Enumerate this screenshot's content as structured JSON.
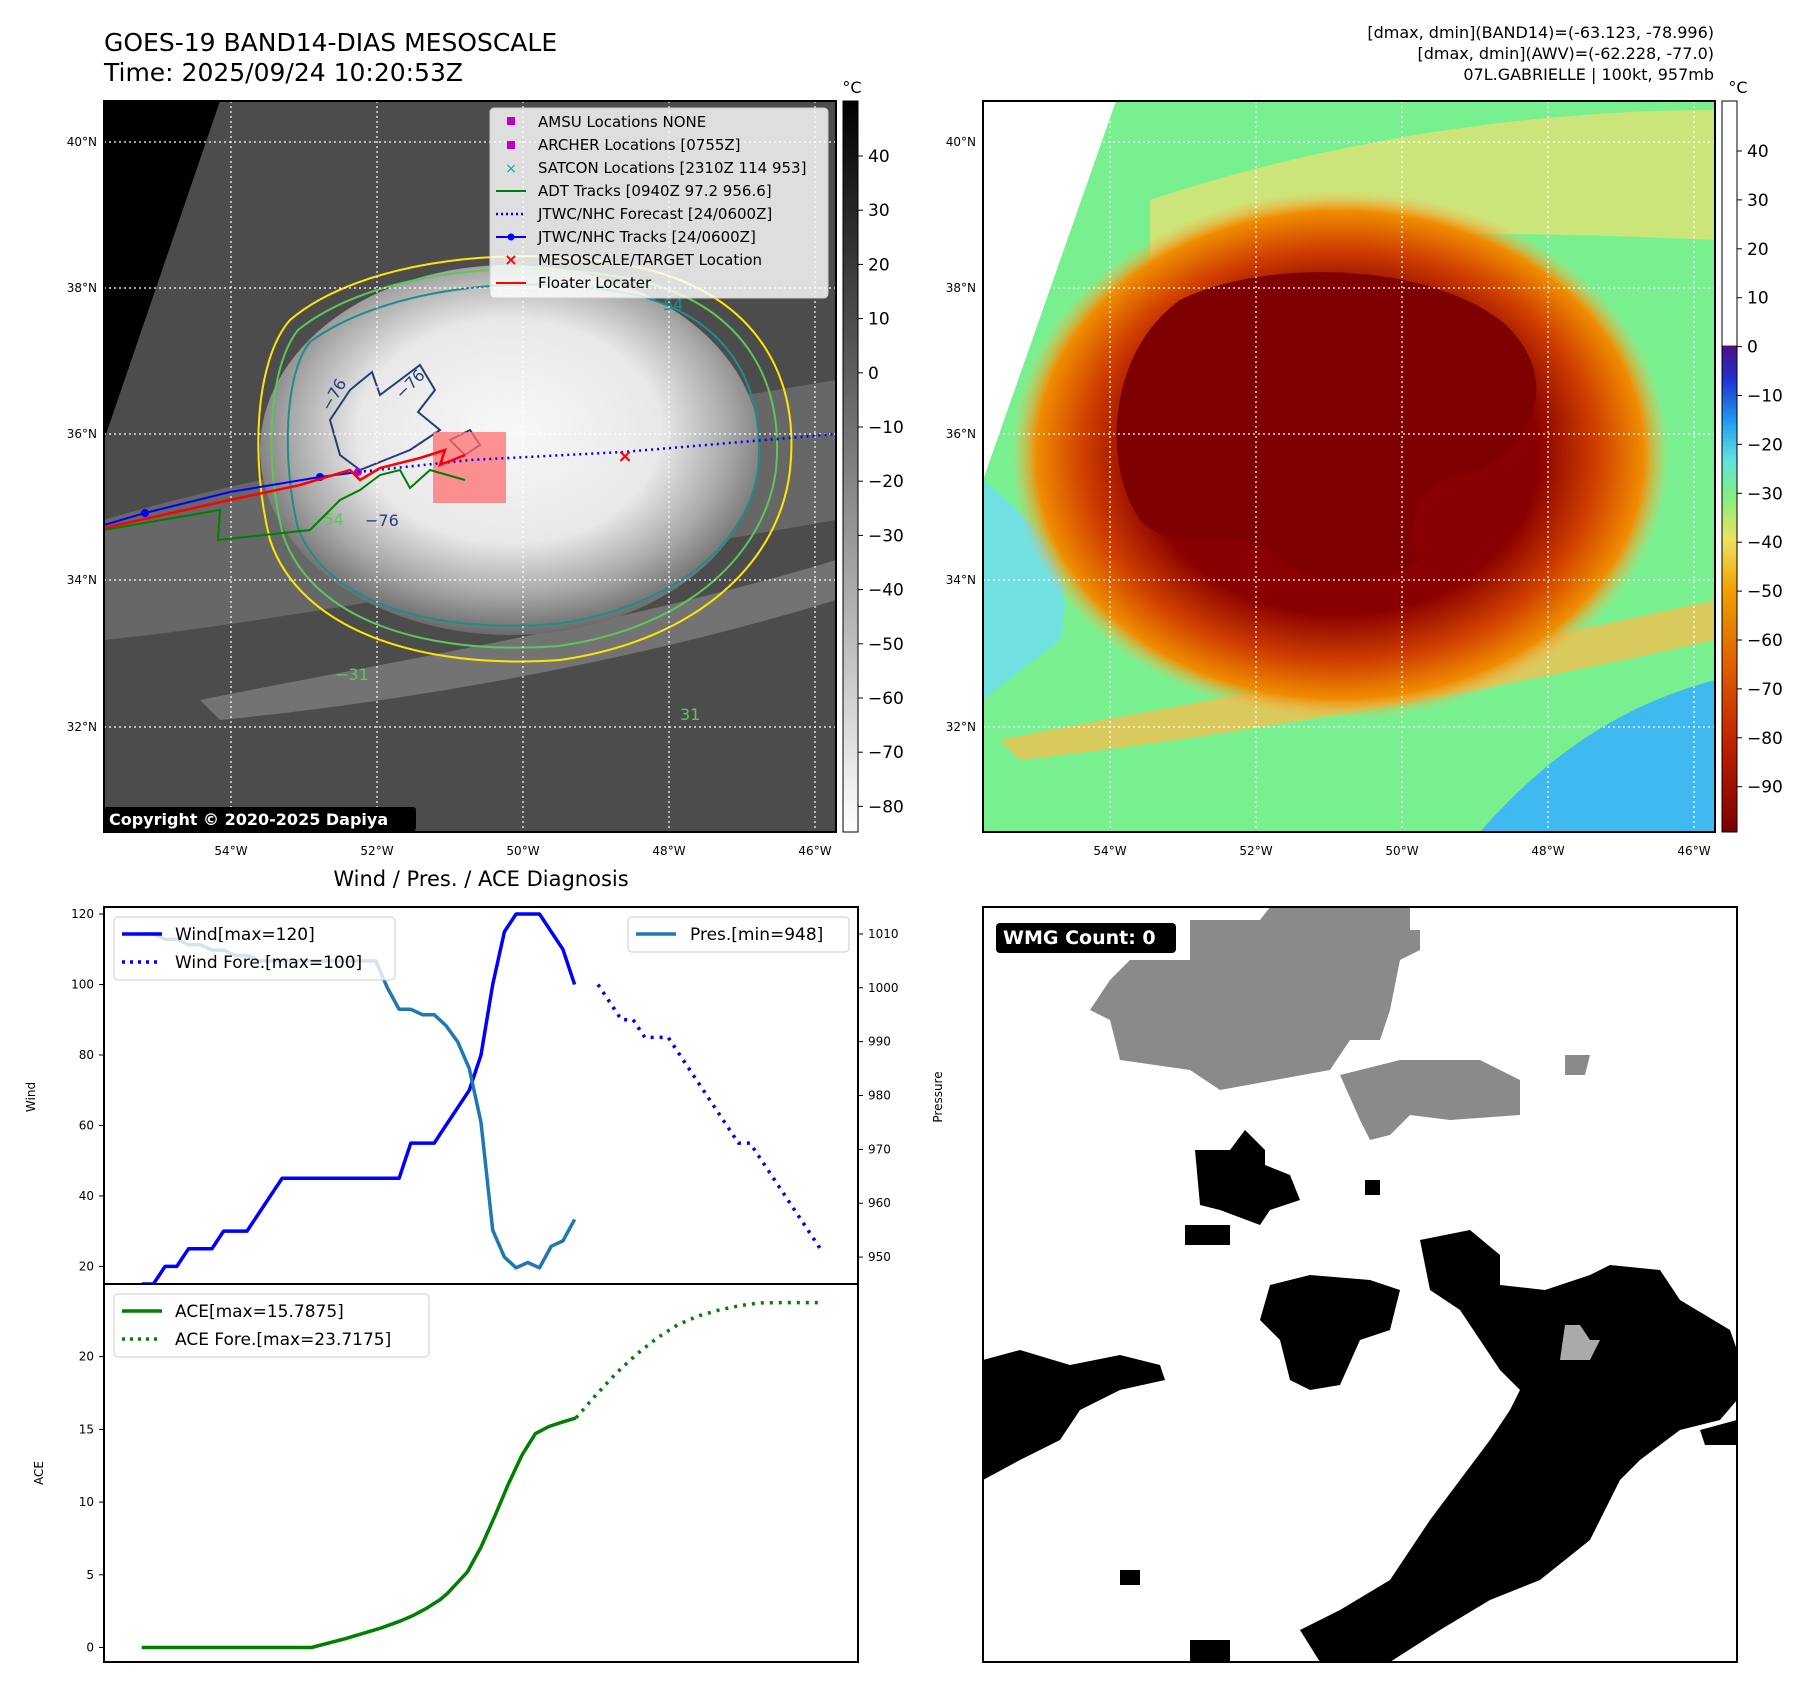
{
  "header": {
    "title_line1": "GOES-19 BAND14-DIAS MESOSCALE",
    "title_line2": "Time: 2025/09/24 10:20:53Z",
    "stats_line1": "[dmax, dmin](BAND14)=(-63.123, -78.996)",
    "stats_line2": "[dmax, dmin](AWV)=(-62.228, -77.0)",
    "stats_line3": "07L.GABRIELLE | 100kt, 957mb"
  },
  "ir_panel": {
    "lat_labels": [
      "40°N",
      "38°N",
      "36°N",
      "34°N",
      "32°N"
    ],
    "lon_labels": [
      "54°W",
      "52°W",
      "50°W",
      "48°W",
      "46°W"
    ],
    "colorbar_unit": "°C",
    "colorbar_ticks": [
      "40",
      "30",
      "20",
      "10",
      "0",
      "−10",
      "−20",
      "−30",
      "−40",
      "−50",
      "−60",
      "−70",
      "−80"
    ],
    "contour_labels": [
      "−76",
      "−76",
      "−76",
      "54",
      "−54",
      "−31",
      "31"
    ],
    "copyright": "Copyright © 2020-2025 Dapiya",
    "legend": [
      {
        "label": "AMSU Locations NONE",
        "color": "#c000c0",
        "marker": "square"
      },
      {
        "label": "ARCHER Locations [0755Z]",
        "color": "#c000c0",
        "marker": "square"
      },
      {
        "label": "SATCON Locations [2310Z 114 953]",
        "color": "#00b0b0",
        "marker": "x"
      },
      {
        "label": "ADT Tracks [0940Z 97.2 956.6]",
        "color": "#008000",
        "marker": "line"
      },
      {
        "label": "JTWC/NHC Forecast [24/0600Z]",
        "color": "#0000ff",
        "marker": "dotted"
      },
      {
        "label": "JTWC/NHC Tracks [24/0600Z]",
        "color": "#0000ff",
        "marker": "line-dot"
      },
      {
        "label": "MESOSCALE/TARGET Location",
        "color": "#ff0000",
        "marker": "x"
      },
      {
        "label": "Floater Locater",
        "color": "#ff0000",
        "marker": "line"
      }
    ]
  },
  "dias_panel": {
    "lat_labels": [
      "40°N",
      "38°N",
      "36°N",
      "34°N",
      "32°N"
    ],
    "lon_labels": [
      "54°W",
      "52°W",
      "50°W",
      "48°W",
      "46°W"
    ],
    "colorbar_unit": "°C",
    "colorbar_ticks": [
      "40",
      "30",
      "20",
      "10",
      "0",
      "−10",
      "−20",
      "−30",
      "−40",
      "−50",
      "−60",
      "−70",
      "−80",
      "−90"
    ]
  },
  "wmg_panel": {
    "label": "WMG Count: 0"
  },
  "chart_data": [
    {
      "type": "line",
      "title": "Wind / Pres. / ACE Diagnosis",
      "ylabel": "Wind",
      "y2label": "Pressure",
      "ylim": [
        15,
        122
      ],
      "y2lim": [
        945,
        1015
      ],
      "yticks": [
        20,
        40,
        60,
        80,
        100,
        120
      ],
      "y2ticks": [
        950,
        960,
        970,
        980,
        990,
        1000,
        1010
      ],
      "series": [
        {
          "name": "Wind[max=120]",
          "axis": "left",
          "style": "solid",
          "color": "#0000ff",
          "x": [
            0,
            1,
            2,
            3,
            4,
            5,
            6,
            7,
            8,
            9,
            10,
            11,
            12,
            13,
            14,
            15,
            16,
            17,
            18,
            19,
            20,
            21,
            22,
            23,
            24,
            25,
            26,
            27,
            28,
            29,
            30,
            31,
            32,
            33,
            34,
            35,
            36,
            37,
            38,
            39
          ],
          "y": [
            15,
            15,
            20,
            20,
            25,
            25,
            25,
            30,
            30,
            30,
            35,
            40,
            45,
            45,
            45,
            45,
            45,
            45,
            45,
            45,
            45,
            45,
            45,
            55,
            55,
            55,
            60,
            65,
            70,
            80,
            100,
            115,
            120,
            120,
            120,
            115,
            110,
            100,
            null,
            null
          ]
        },
        {
          "name": "Wind Fore.[max=100]",
          "axis": "left",
          "style": "dotted",
          "color": "#0000ff",
          "x": [
            39,
            40,
            41,
            42,
            43,
            44,
            45,
            46,
            47,
            48,
            49,
            50,
            51,
            52,
            53,
            54,
            55,
            56,
            57,
            58
          ],
          "y": [
            100,
            95,
            90,
            90,
            85,
            85,
            85,
            80,
            75,
            70,
            65,
            60,
            55,
            55,
            50,
            45,
            40,
            35,
            30,
            25
          ]
        },
        {
          "name": "Pres.[min=948]",
          "axis": "right",
          "style": "solid",
          "color": "#1f77b4",
          "x": [
            0,
            1,
            2,
            3,
            4,
            5,
            6,
            7,
            8,
            9,
            10,
            11,
            12,
            13,
            14,
            15,
            16,
            17,
            18,
            19,
            20,
            21,
            22,
            23,
            24,
            25,
            26,
            27,
            28,
            29,
            30,
            31,
            32,
            33,
            34,
            35,
            36,
            37,
            38,
            39
          ],
          "y": [
            1010,
            1010,
            1009,
            1009,
            1008,
            1008,
            1007,
            1007,
            1006,
            1006,
            1005,
            1005,
            1005,
            1005,
            1005,
            1005,
            1005,
            1005,
            1005,
            1005,
            1005,
            1000,
            996,
            996,
            995,
            995,
            993,
            990,
            985,
            975,
            955,
            950,
            948,
            949,
            948,
            952,
            953,
            957,
            null,
            null
          ]
        }
      ]
    },
    {
      "type": "line",
      "ylabel": "ACE",
      "ylim": [
        -1,
        25
      ],
      "yticks": [
        0,
        5,
        10,
        15,
        20
      ],
      "series": [
        {
          "name": "ACE[max=15.7875]",
          "style": "solid",
          "color": "#008000",
          "x": [
            0,
            5,
            10,
            15,
            20,
            25,
            30,
            35,
            38,
            40,
            42,
            44,
            45,
            46,
            48,
            50,
            52,
            54,
            56,
            58,
            60,
            62,
            64
          ],
          "y": [
            0,
            0,
            0,
            0,
            0,
            0,
            0.6,
            1.3,
            1.8,
            2.2,
            2.7,
            3.3,
            3.7,
            4.2,
            5.2,
            6.9,
            9.0,
            11.2,
            13.2,
            14.7,
            15.2,
            15.5,
            15.7875
          ]
        },
        {
          "name": "ACE Fore.[max=23.7175]",
          "style": "dotted",
          "color": "#008000",
          "x": [
            64,
            67,
            70,
            73,
            76,
            79,
            82,
            85,
            88,
            91,
            94,
            97,
            100
          ],
          "y": [
            15.7875,
            17.4,
            18.9,
            20.2,
            21.3,
            22.2,
            22.8,
            23.2,
            23.5,
            23.7,
            23.7175,
            23.7175,
            23.7175
          ]
        }
      ]
    }
  ]
}
